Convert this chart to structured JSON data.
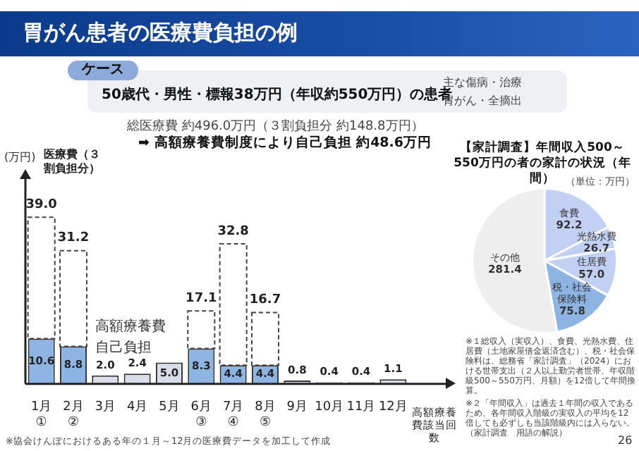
{
  "chart_data": [
    {
      "type": "bar",
      "title": "胃がん患者の医療費負担の例",
      "ylabel": "(万円)",
      "xlabel": "高額療養費該当回数",
      "stacked": true,
      "categories": [
        "1月\n①",
        "2月\n②",
        "3月",
        "4月",
        "5月",
        "6月\n③",
        "7月\n④",
        "8月\n⑤",
        "9月",
        "10月",
        "11月",
        "12月"
      ],
      "series": [
        {
          "name": "自己負担",
          "colors": [
            "#8db4e2",
            "#8db4e2",
            "#d9dde8",
            "#d9dde8",
            "#d9dde8",
            "#8db4e2",
            "#8db4e2",
            "#8db4e2",
            "#d9dde8",
            "#d9dde8",
            "#d9dde8",
            "#d9dde8"
          ],
          "values": [
            10.6,
            8.8,
            2.0,
            2.4,
            5.0,
            8.3,
            4.4,
            4.4,
            0.8,
            0.4,
            0.4,
            1.1
          ],
          "value_labels": [
            "10.6",
            "8.8",
            "2.0",
            "2.4",
            "5.0",
            "8.3",
            "4.4",
            "4.4",
            "0.8",
            "0.4",
            "0.4",
            "1.1"
          ]
        },
        {
          "name": "高額療養費",
          "color": "#ffffff",
          "line_style": "dashed",
          "values": [
            28.4,
            22.4,
            null,
            null,
            null,
            8.8,
            28.4,
            12.3,
            null,
            null,
            null,
            null
          ]
        }
      ],
      "totals": [
        "39.0",
        "31.2",
        null,
        null,
        null,
        "17.1",
        "32.8",
        "16.7",
        null,
        null,
        null,
        null
      ],
      "annotations": [
        "ケース",
        "50歳代・男性・標報38万円（年収約550万円）の患者",
        "主な傷病・治療",
        "胃がん・全摘出",
        "総医療費 約496.0万円（３割負担分 約148.8万円）",
        "➡ 高額療養費制度により自己負担 約48.6万円",
        "医療費（３割負担分）",
        "※協会けんぽにおけるある年の１月～12月の医療費データを加工して作成"
      ]
    },
    {
      "type": "pie",
      "title": "【家計調査】年間収入500～550万円の者の家計の状況（年間）",
      "subtitle": "（単位：万円）",
      "categories": [
        "食費",
        "光熱水費",
        "住居費",
        "税・社会保険料",
        "その他"
      ],
      "values": [
        92.2,
        26.7,
        57.0,
        75.8,
        281.4
      ],
      "value_labels": [
        "92.2",
        "26.7",
        "57.0",
        "75.8",
        "281.4"
      ],
      "colors": [
        "#c2d1f3",
        "#c2d1f3",
        "#c2d1f3",
        "#8db4e2",
        "#eeeeee"
      ],
      "annotations": [
        "※１総収入（実収入）、食費、光熱水費、住居費（土地家屋借金返済含む）、税・社会保険料は、総務省「家計調査」（2024）における世帯支出（２人以上勤労者世帯、年収階級500～550万円、月額）を12倍して年間換算。",
        "※２「年間収入」は過去１年間の収入であるため、各年間収入階級の実収入の平均を12倍しても必ずしも当該階級内には入らない。（家計調査　用語の解説）",
        "26"
      ]
    }
  ]
}
